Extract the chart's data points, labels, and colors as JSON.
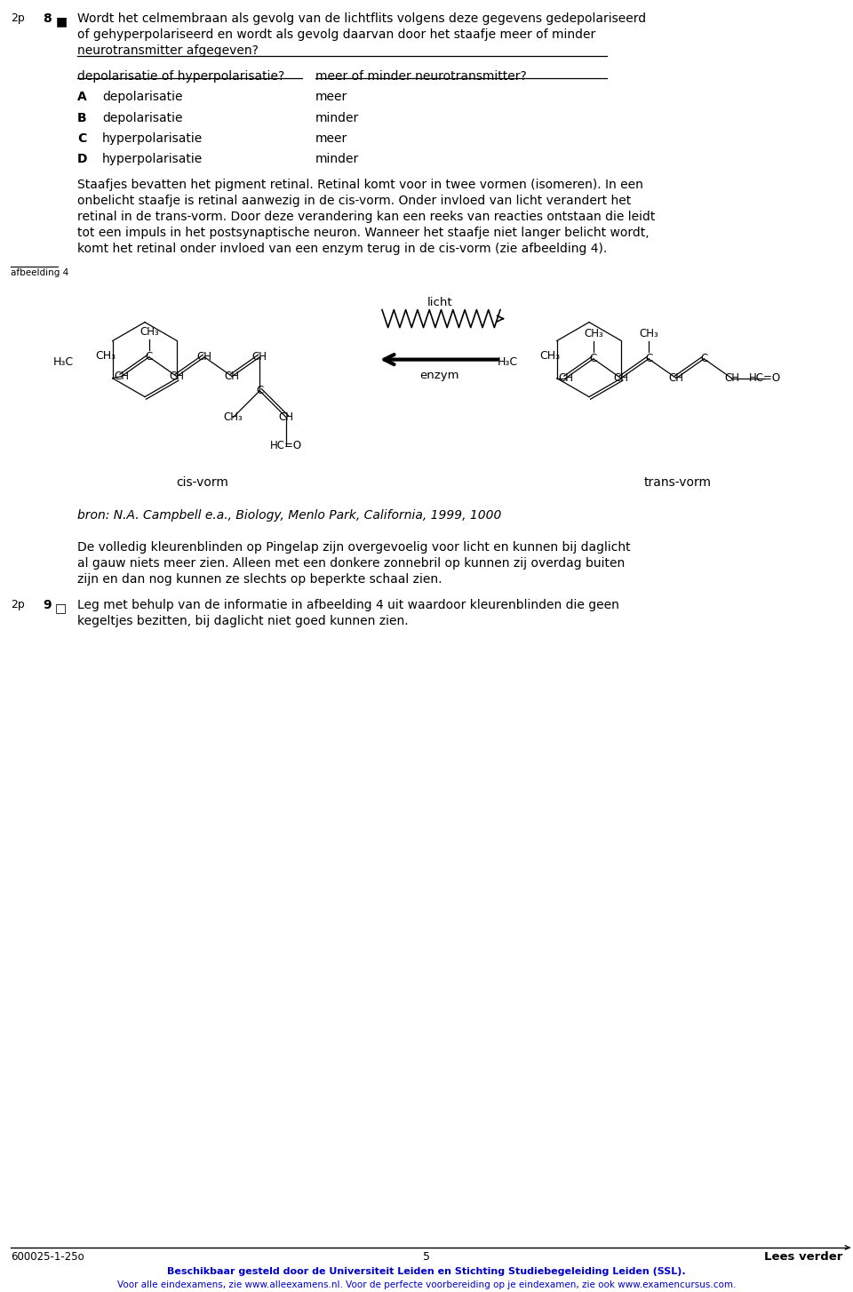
{
  "bg_color": "#ffffff",
  "text_color": "#000000",
  "blue_color": "#0000cc",
  "q8_line1": "Wordt het celmembraan als gevolg van de lichtflits volgens deze gegevens gedepolariseerd",
  "q8_line2": "of gehyperpolariseerd en wordt als gevolg daarvan door het staafje meer of minder",
  "q8_line3": "neurotransmitter afgegeven?",
  "table_header1": "depolarisatie of hyperpolarisatie?",
  "table_header2": "meer of minder neurotransmitter?",
  "row_A_col1": "depolarisatie",
  "row_A_col2": "meer",
  "row_B_col1": "depolarisatie",
  "row_B_col2": "minder",
  "row_C_col1": "hyperpolarisatie",
  "row_C_col2": "meer",
  "row_D_col1": "hyperpolarisatie",
  "row_D_col2": "minder",
  "body_text_line1": "Staafjes bevatten het pigment retinal. Retinal komt voor in twee vormen (isomeren). In een",
  "body_text_line2": "onbelicht staafje is retinal aanwezig in de cis-vorm. Onder invloed van licht verandert het",
  "body_text_line3": "retinal in de trans-vorm. Door deze verandering kan een reeks van reacties ontstaan die leidt",
  "body_text_line4": "tot een impuls in het postsynaptische neuron. Wanneer het staafje niet langer belicht wordt,",
  "body_text_line5": "komt het retinal onder invloed van een enzym terug in de cis-vorm (zie afbeelding 4).",
  "afbeelding4_label": "afbeelding 4",
  "licht_label": "licht",
  "enzym_label": "enzym",
  "cisvorm_label": "cis-vorm",
  "transvorm_label": "trans-vorm",
  "bron_text": "bron: N.A. Campbell e.a., Biology, Menlo Park, California, 1999, 1000",
  "para2_line1": "De volledig kleurenblinden op Pingelap zijn overgevoelig voor licht en kunnen bij daglicht",
  "para2_line2": "al gauw niets meer zien. Alleen met een donkere zonnebril op kunnen zij overdag buiten",
  "para2_line3": "zijn en dan nog kunnen ze slechts op beperkte schaal zien.",
  "q9_line1": "Leg met behulp van de informatie in afbeelding 4 uit waardoor kleurenblinden die geen",
  "q9_line2": "kegeltjes bezitten, bij daglicht niet goed kunnen zien.",
  "footer_left": "600025-1-25o",
  "footer_center": "5",
  "footer_right": "Lees verder",
  "footer_blue1": "Beschikbaar gesteld door de Universiteit Leiden en Stichting Studiebegeleiding Leiden (SSL).",
  "footer_blue2": "Voor alle eindexamens, zie www.alleexamens.nl. Voor de perfecte voorbereiding op je eindexamen, zie ook www.examencursus.com."
}
